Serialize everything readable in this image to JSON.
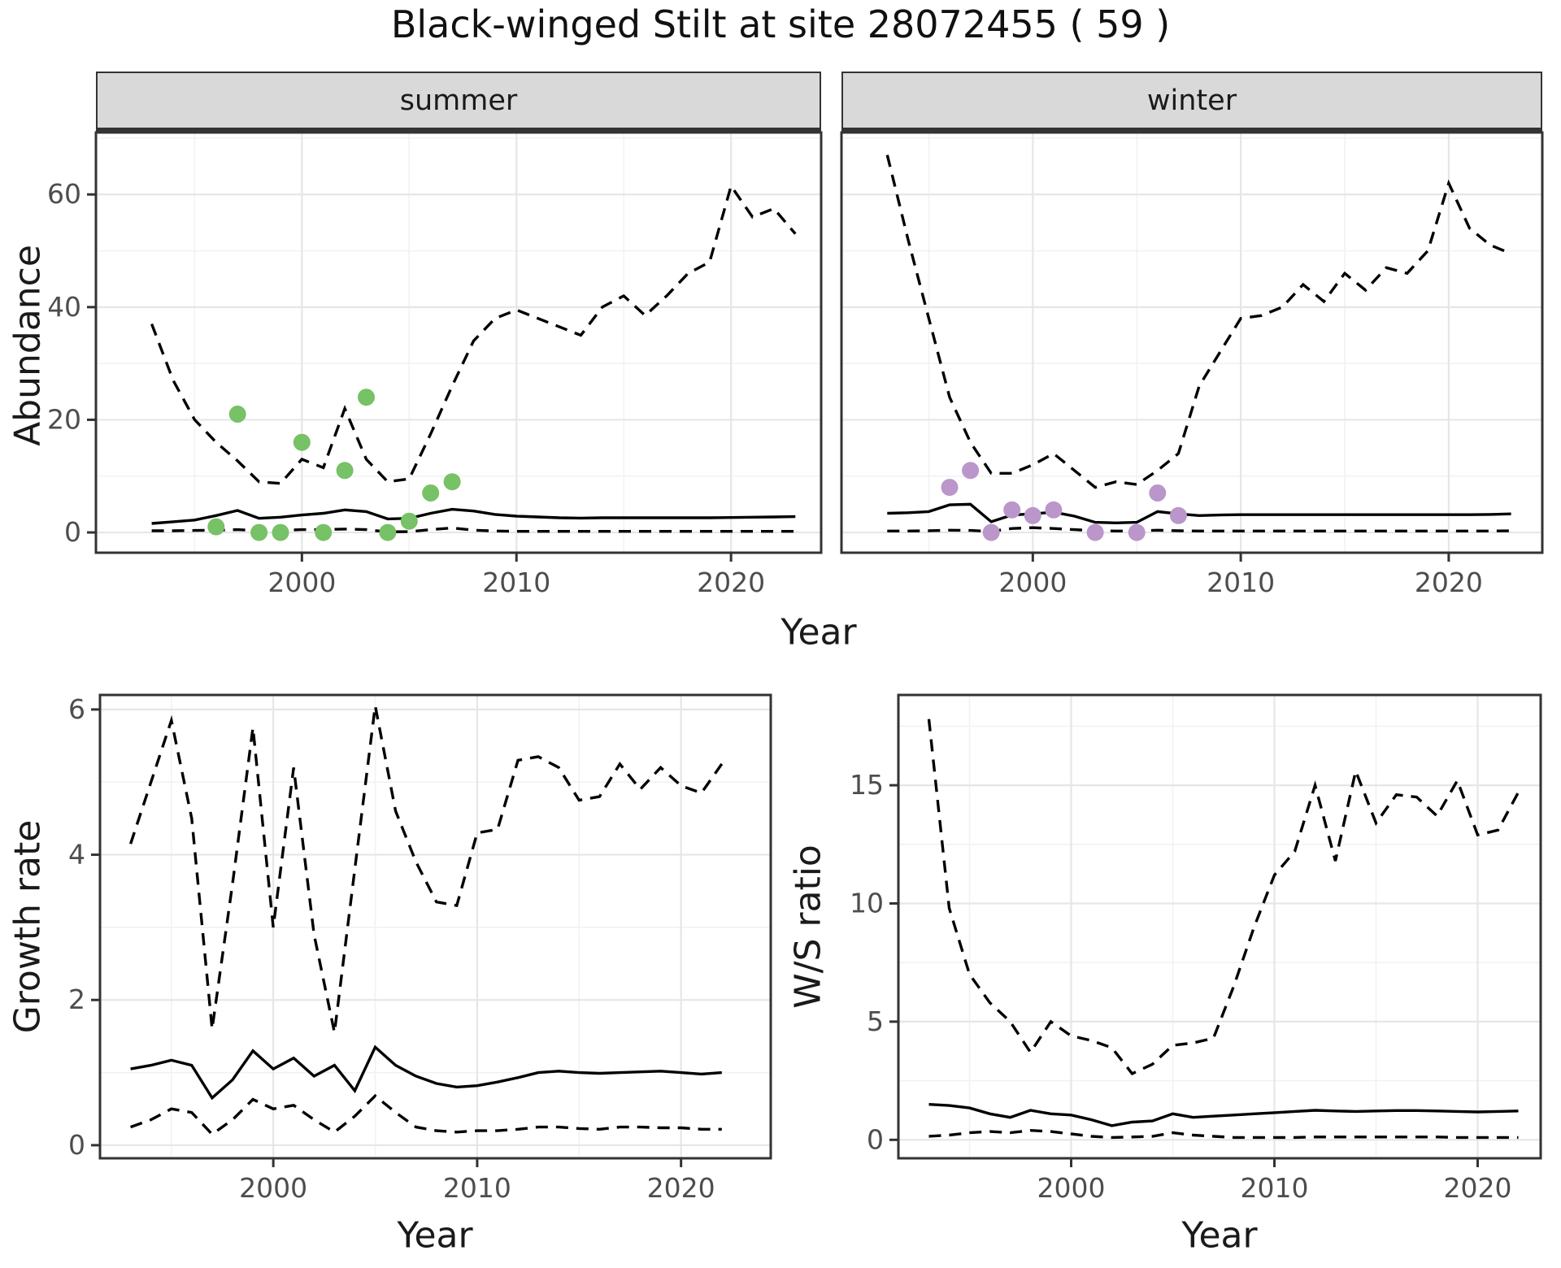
{
  "title": "Black-winged Stilt at site 28072455 ( 59 )",
  "colors": {
    "summer_points": "#77c166",
    "winter_points": "#ba96ca",
    "line": "#000000",
    "panel_border": "#333333",
    "grid_major": "#e6e6e6",
    "grid_minor": "#f2f2f2",
    "strip_bg": "#d9d9d9",
    "axis_text": "#4d4d4d",
    "title_text": "#111111"
  },
  "facets": [
    "summer",
    "winter"
  ],
  "chart_data": [
    {
      "type": "line",
      "title": "summer",
      "xlabel": "Year",
      "ylabel": "Abundance",
      "legend": "none",
      "grid": true,
      "xlim": [
        1990.4,
        2024.2
      ],
      "ylim": [
        -3.6,
        71
      ],
      "xticks": [
        2000,
        2010,
        2020
      ],
      "xticks_minor": [
        1995,
        2005,
        2015
      ],
      "yticks": [
        0,
        20,
        40,
        60
      ],
      "yticks_minor": [
        10,
        30,
        50,
        70
      ],
      "x": [
        1993,
        1994,
        1995,
        1996,
        1997,
        1998,
        1999,
        2000,
        2001,
        2002,
        2003,
        2004,
        2005,
        2006,
        2007,
        2008,
        2009,
        2010,
        2011,
        2012,
        2013,
        2014,
        2015,
        2016,
        2017,
        2018,
        2019,
        2020,
        2021,
        2022,
        2023
      ],
      "series": [
        {
          "name": "upper_ci",
          "style": "dashed",
          "values": [
            37,
            27,
            20,
            16,
            12.7,
            9,
            8.7,
            13,
            11.5,
            22,
            13,
            9,
            9.5,
            17.5,
            26,
            34,
            38,
            39.5,
            38,
            36.5,
            35,
            40,
            42,
            38.5,
            42,
            46,
            48,
            61.5,
            56,
            57.5,
            53
          ]
        },
        {
          "name": "fit",
          "style": "solid",
          "values": [
            1.6,
            1.9,
            2.2,
            3.0,
            3.9,
            2.5,
            2.7,
            3.1,
            3.4,
            4.0,
            3.7,
            2.4,
            2.5,
            3.4,
            4.1,
            3.8,
            3.2,
            2.9,
            2.75,
            2.6,
            2.55,
            2.6,
            2.6,
            2.6,
            2.6,
            2.6,
            2.6,
            2.65,
            2.7,
            2.75,
            2.8
          ]
        },
        {
          "name": "lower_ci",
          "style": "dashed",
          "values": [
            0.3,
            0.3,
            0.35,
            0.4,
            0.5,
            0.3,
            0.35,
            0.5,
            0.5,
            0.6,
            0.5,
            0.1,
            0.15,
            0.5,
            0.8,
            0.4,
            0.25,
            0.2,
            0.2,
            0.2,
            0.2,
            0.2,
            0.2,
            0.2,
            0.2,
            0.2,
            0.2,
            0.2,
            0.2,
            0.2,
            0.2
          ]
        }
      ],
      "points": {
        "name": "observed_counts",
        "color": "#77c166",
        "x": [
          1996,
          1997,
          1998,
          1999,
          2000,
          2001,
          2002,
          2003,
          2004,
          2005,
          2006,
          2007
        ],
        "y": [
          1,
          21,
          0,
          0,
          16,
          0,
          11,
          24,
          0,
          2,
          7,
          9
        ]
      }
    },
    {
      "type": "line",
      "title": "winter",
      "xlabel": "Year",
      "ylabel": "Abundance",
      "legend": "none",
      "grid": true,
      "xlim": [
        1990.8,
        2024.5
      ],
      "ylim": [
        -3.6,
        71
      ],
      "xticks": [
        2000,
        2010,
        2020
      ],
      "xticks_minor": [
        1995,
        2005,
        2015
      ],
      "yticks": [
        0,
        20,
        40,
        60
      ],
      "yticks_minor": [
        10,
        30,
        50,
        70
      ],
      "x": [
        1993,
        1994,
        1995,
        1996,
        1997,
        1998,
        1999,
        2000,
        2001,
        2002,
        2003,
        2004,
        2005,
        2006,
        2007,
        2008,
        2009,
        2010,
        2011,
        2012,
        2013,
        2014,
        2015,
        2016,
        2017,
        2018,
        2019,
        2020,
        2021,
        2022,
        2023
      ],
      "series": [
        {
          "name": "upper_ci",
          "style": "dashed",
          "values": [
            67,
            52,
            38,
            24,
            16,
            10.5,
            10.5,
            12,
            14,
            11,
            8,
            9,
            8.5,
            11,
            14,
            26,
            32,
            38,
            38.5,
            40,
            44,
            41,
            46,
            43,
            47,
            46,
            50,
            62,
            54,
            51,
            49.5
          ]
        },
        {
          "name": "fit",
          "style": "solid",
          "values": [
            3.4,
            3.5,
            3.7,
            4.9,
            5.0,
            1.9,
            3.1,
            3.3,
            3.6,
            2.9,
            1.8,
            1.7,
            1.8,
            3.7,
            3.3,
            3.0,
            3.1,
            3.15,
            3.15,
            3.15,
            3.15,
            3.15,
            3.15,
            3.15,
            3.15,
            3.15,
            3.15,
            3.15,
            3.15,
            3.2,
            3.3
          ]
        },
        {
          "name": "lower_ci",
          "style": "dashed",
          "values": [
            0.25,
            0.25,
            0.3,
            0.4,
            0.35,
            0.2,
            0.7,
            0.85,
            0.7,
            0.5,
            0.3,
            0.25,
            0.25,
            0.4,
            0.3,
            0.25,
            0.25,
            0.25,
            0.25,
            0.25,
            0.25,
            0.25,
            0.25,
            0.25,
            0.25,
            0.25,
            0.25,
            0.25,
            0.25,
            0.25,
            0.3
          ]
        }
      ],
      "points": {
        "name": "observed_counts",
        "color": "#ba96ca",
        "x": [
          1996,
          1997,
          1998,
          1999,
          2000,
          2001,
          2003,
          2005,
          2006,
          2007
        ],
        "y": [
          8,
          11,
          0,
          4,
          3,
          4,
          0,
          0,
          7,
          3
        ]
      }
    },
    {
      "type": "line",
      "title": "",
      "xlabel": "Year",
      "ylabel": "Growth rate",
      "legend": "none",
      "grid": true,
      "xlim": [
        1991.5,
        2024.4
      ],
      "ylim": [
        -0.18,
        6.2
      ],
      "xticks": [
        2000,
        2010,
        2020
      ],
      "xticks_minor": [
        1995,
        2005,
        2015
      ],
      "yticks": [
        0,
        2,
        4,
        6
      ],
      "yticks_minor": [
        1,
        3,
        5
      ],
      "x": [
        1993,
        1994,
        1995,
        1996,
        1997,
        1998,
        1999,
        2000,
        2001,
        2002,
        2003,
        2004,
        2005,
        2006,
        2007,
        2008,
        2009,
        2010,
        2011,
        2012,
        2013,
        2014,
        2015,
        2016,
        2017,
        2018,
        2019,
        2020,
        2021,
        2022
      ],
      "series": [
        {
          "name": "upper_ci",
          "style": "dashed",
          "values": [
            4.15,
            5.0,
            5.85,
            4.5,
            1.6,
            3.6,
            5.75,
            3.0,
            5.2,
            2.9,
            1.55,
            3.8,
            6.05,
            4.6,
            3.9,
            3.35,
            3.3,
            4.3,
            4.35,
            5.3,
            5.35,
            5.2,
            4.75,
            4.8,
            5.25,
            4.9,
            5.2,
            4.95,
            4.85,
            5.25
          ]
        },
        {
          "name": "fit",
          "style": "solid",
          "values": [
            1.05,
            1.1,
            1.17,
            1.1,
            0.65,
            0.9,
            1.3,
            1.05,
            1.2,
            0.95,
            1.1,
            0.75,
            1.35,
            1.1,
            0.95,
            0.85,
            0.8,
            0.82,
            0.87,
            0.93,
            1.0,
            1.02,
            1.0,
            0.99,
            1.0,
            1.01,
            1.02,
            1.0,
            0.98,
            1.0
          ]
        },
        {
          "name": "lower_ci",
          "style": "dashed",
          "values": [
            0.25,
            0.35,
            0.5,
            0.45,
            0.15,
            0.35,
            0.63,
            0.5,
            0.55,
            0.35,
            0.18,
            0.4,
            0.68,
            0.45,
            0.25,
            0.2,
            0.18,
            0.2,
            0.2,
            0.22,
            0.25,
            0.25,
            0.23,
            0.22,
            0.25,
            0.25,
            0.24,
            0.24,
            0.22,
            0.22
          ]
        }
      ],
      "points": null
    },
    {
      "type": "line",
      "title": "",
      "xlabel": "Year",
      "ylabel": "W/S ratio",
      "legend": "none",
      "grid": true,
      "xlim": [
        1991.5,
        2023.1
      ],
      "ylim": [
        -0.78,
        18.82
      ],
      "xticks": [
        2000,
        2010,
        2020
      ],
      "xticks_minor": [
        1995,
        2005,
        2015
      ],
      "yticks": [
        0,
        5,
        10,
        15
      ],
      "yticks_minor": [
        2.5,
        7.5,
        12.5,
        17.5
      ],
      "x": [
        1993,
        1994,
        1995,
        1996,
        1997,
        1998,
        1999,
        2000,
        2001,
        2002,
        2003,
        2004,
        2005,
        2006,
        2007,
        2008,
        2009,
        2010,
        2011,
        2012,
        2013,
        2014,
        2015,
        2016,
        2017,
        2018,
        2019,
        2020,
        2021,
        2022
      ],
      "series": [
        {
          "name": "upper_ci",
          "style": "dashed",
          "values": [
            17.8,
            9.8,
            7.0,
            5.8,
            5.0,
            3.7,
            5.0,
            4.4,
            4.2,
            3.9,
            2.8,
            3.2,
            4.0,
            4.1,
            4.3,
            6.5,
            9.0,
            11.2,
            12.2,
            15.0,
            11.8,
            15.6,
            13.4,
            14.6,
            14.5,
            13.7,
            15.2,
            12.9,
            13.1,
            14.7
          ]
        },
        {
          "name": "fit",
          "style": "solid",
          "values": [
            1.5,
            1.45,
            1.35,
            1.1,
            0.95,
            1.25,
            1.1,
            1.05,
            0.85,
            0.6,
            0.75,
            0.8,
            1.1,
            0.95,
            1.0,
            1.05,
            1.1,
            1.15,
            1.2,
            1.25,
            1.22,
            1.2,
            1.22,
            1.24,
            1.24,
            1.22,
            1.2,
            1.18,
            1.2,
            1.22
          ]
        },
        {
          "name": "lower_ci",
          "style": "dashed",
          "values": [
            0.15,
            0.2,
            0.3,
            0.35,
            0.3,
            0.4,
            0.35,
            0.25,
            0.15,
            0.1,
            0.12,
            0.15,
            0.3,
            0.2,
            0.15,
            0.1,
            0.1,
            0.1,
            0.1,
            0.12,
            0.12,
            0.12,
            0.12,
            0.12,
            0.12,
            0.12,
            0.1,
            0.1,
            0.1,
            0.1
          ]
        }
      ],
      "points": null
    }
  ]
}
